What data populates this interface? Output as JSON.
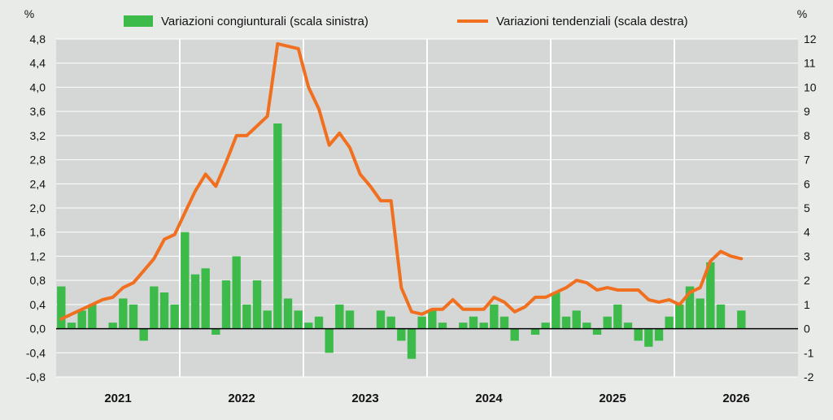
{
  "chart_data": {
    "type": "bar+line",
    "left_unit": "%",
    "right_unit": "%",
    "legend": {
      "placement": "top",
      "bar_label": "Variazioni congiunturali (scala sinistra)",
      "line_label": "Variazioni tendenziali (scala destra)"
    },
    "y_left": {
      "min": -0.8,
      "max": 4.8,
      "step": 0.4
    },
    "y_left_ticks": [
      "4,8",
      "4,4",
      "4,0",
      "3,6",
      "3,2",
      "2,8",
      "2,4",
      "2,0",
      "1,6",
      "1,2",
      "0,8",
      "0,4",
      "0,0",
      "-0,4",
      "-0,8"
    ],
    "y_right": {
      "min": -2,
      "max": 12,
      "step": 1
    },
    "y_right_ticks": [
      "12",
      "11",
      "10",
      "9",
      "8",
      "7",
      "6",
      "5",
      "4",
      "3",
      "2",
      "1",
      "0",
      "-1",
      "-2"
    ],
    "years": [
      "2021",
      "2022",
      "2023",
      "2024",
      "2025",
      "2026"
    ],
    "months_per_year": 12,
    "grid": true,
    "colors": {
      "bars": "#3dbb4a",
      "line": "#f07020",
      "grid": "#ffffff",
      "zero_line": "#000000"
    },
    "monthly_change": [
      0.7,
      0.1,
      0.3,
      0.4,
      0.0,
      0.1,
      0.5,
      0.4,
      -0.2,
      0.7,
      0.6,
      0.4,
      1.6,
      0.9,
      1.0,
      -0.1,
      0.8,
      1.2,
      0.4,
      0.8,
      0.3,
      3.4,
      0.5,
      0.3,
      0.1,
      0.2,
      -0.4,
      0.4,
      0.3,
      0.0,
      0.0,
      0.3,
      0.2,
      -0.2,
      -0.5,
      0.2,
      0.3,
      0.1,
      0.0,
      0.1,
      0.2,
      0.1,
      0.4,
      0.2,
      -0.2,
      0.0,
      -0.1,
      0.1,
      0.6,
      0.2,
      0.3,
      0.1,
      -0.1,
      0.2,
      0.4,
      0.1,
      -0.2,
      -0.3,
      -0.2,
      0.2,
      0.4,
      0.7,
      0.5,
      1.1,
      0.4,
      0.0,
      0.3
    ],
    "annual_change": [
      0.4,
      0.6,
      0.8,
      1.0,
      1.2,
      1.3,
      1.7,
      1.9,
      2.4,
      2.9,
      3.7,
      3.9,
      4.8,
      5.7,
      6.4,
      5.9,
      6.9,
      8.0,
      8.0,
      8.4,
      8.8,
      11.8,
      11.7,
      11.6,
      10.0,
      9.1,
      7.6,
      8.1,
      7.5,
      6.4,
      5.9,
      5.3,
      5.3,
      1.7,
      0.7,
      0.6,
      0.8,
      0.8,
      1.2,
      0.8,
      0.8,
      0.8,
      1.3,
      1.1,
      0.7,
      0.9,
      1.3,
      1.3,
      1.5,
      1.7,
      2.0,
      1.9,
      1.6,
      1.7,
      1.6,
      1.6,
      1.6,
      1.2,
      1.1,
      1.2,
      1.0,
      1.5,
      1.7,
      2.8,
      3.2,
      3.0,
      2.9
    ]
  }
}
